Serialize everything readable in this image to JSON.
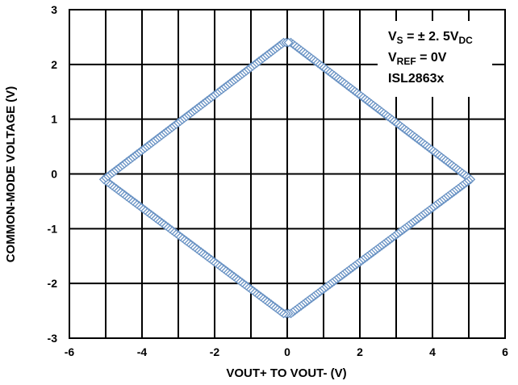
{
  "chart_data": {
    "type": "line",
    "xlabel": "VOUT+ TO VOUT- (V)",
    "ylabel": "COMMON-MODE VOLTAGE (V)",
    "xlim": [
      -6,
      6
    ],
    "ylim": [
      -3,
      3
    ],
    "x_ticks": [
      "-6",
      "-4",
      "-2",
      "0",
      "2",
      "4",
      "6"
    ],
    "y_ticks": [
      "3",
      "2",
      "1",
      "0",
      "-1",
      "-2",
      "-3"
    ],
    "grid": true,
    "marker": "open-diamond",
    "series_color": "#6a93c4",
    "series": [
      {
        "x": [
          0.1,
          5.05,
          0.1,
          -0.1,
          -5.05,
          -0.1
        ],
        "y": [
          2.4,
          -0.1,
          -2.55,
          -2.55,
          -0.1,
          2.4
        ]
      }
    ],
    "annotation": {
      "line1_main": "V",
      "line1_sub": "S",
      "line1_rest": " = ± 2. 5V",
      "line1_sub2": "DC",
      "line2_main": "V",
      "line2_sub": "REF",
      "line2_rest": " = 0V",
      "line3": "ISL2863x"
    }
  }
}
